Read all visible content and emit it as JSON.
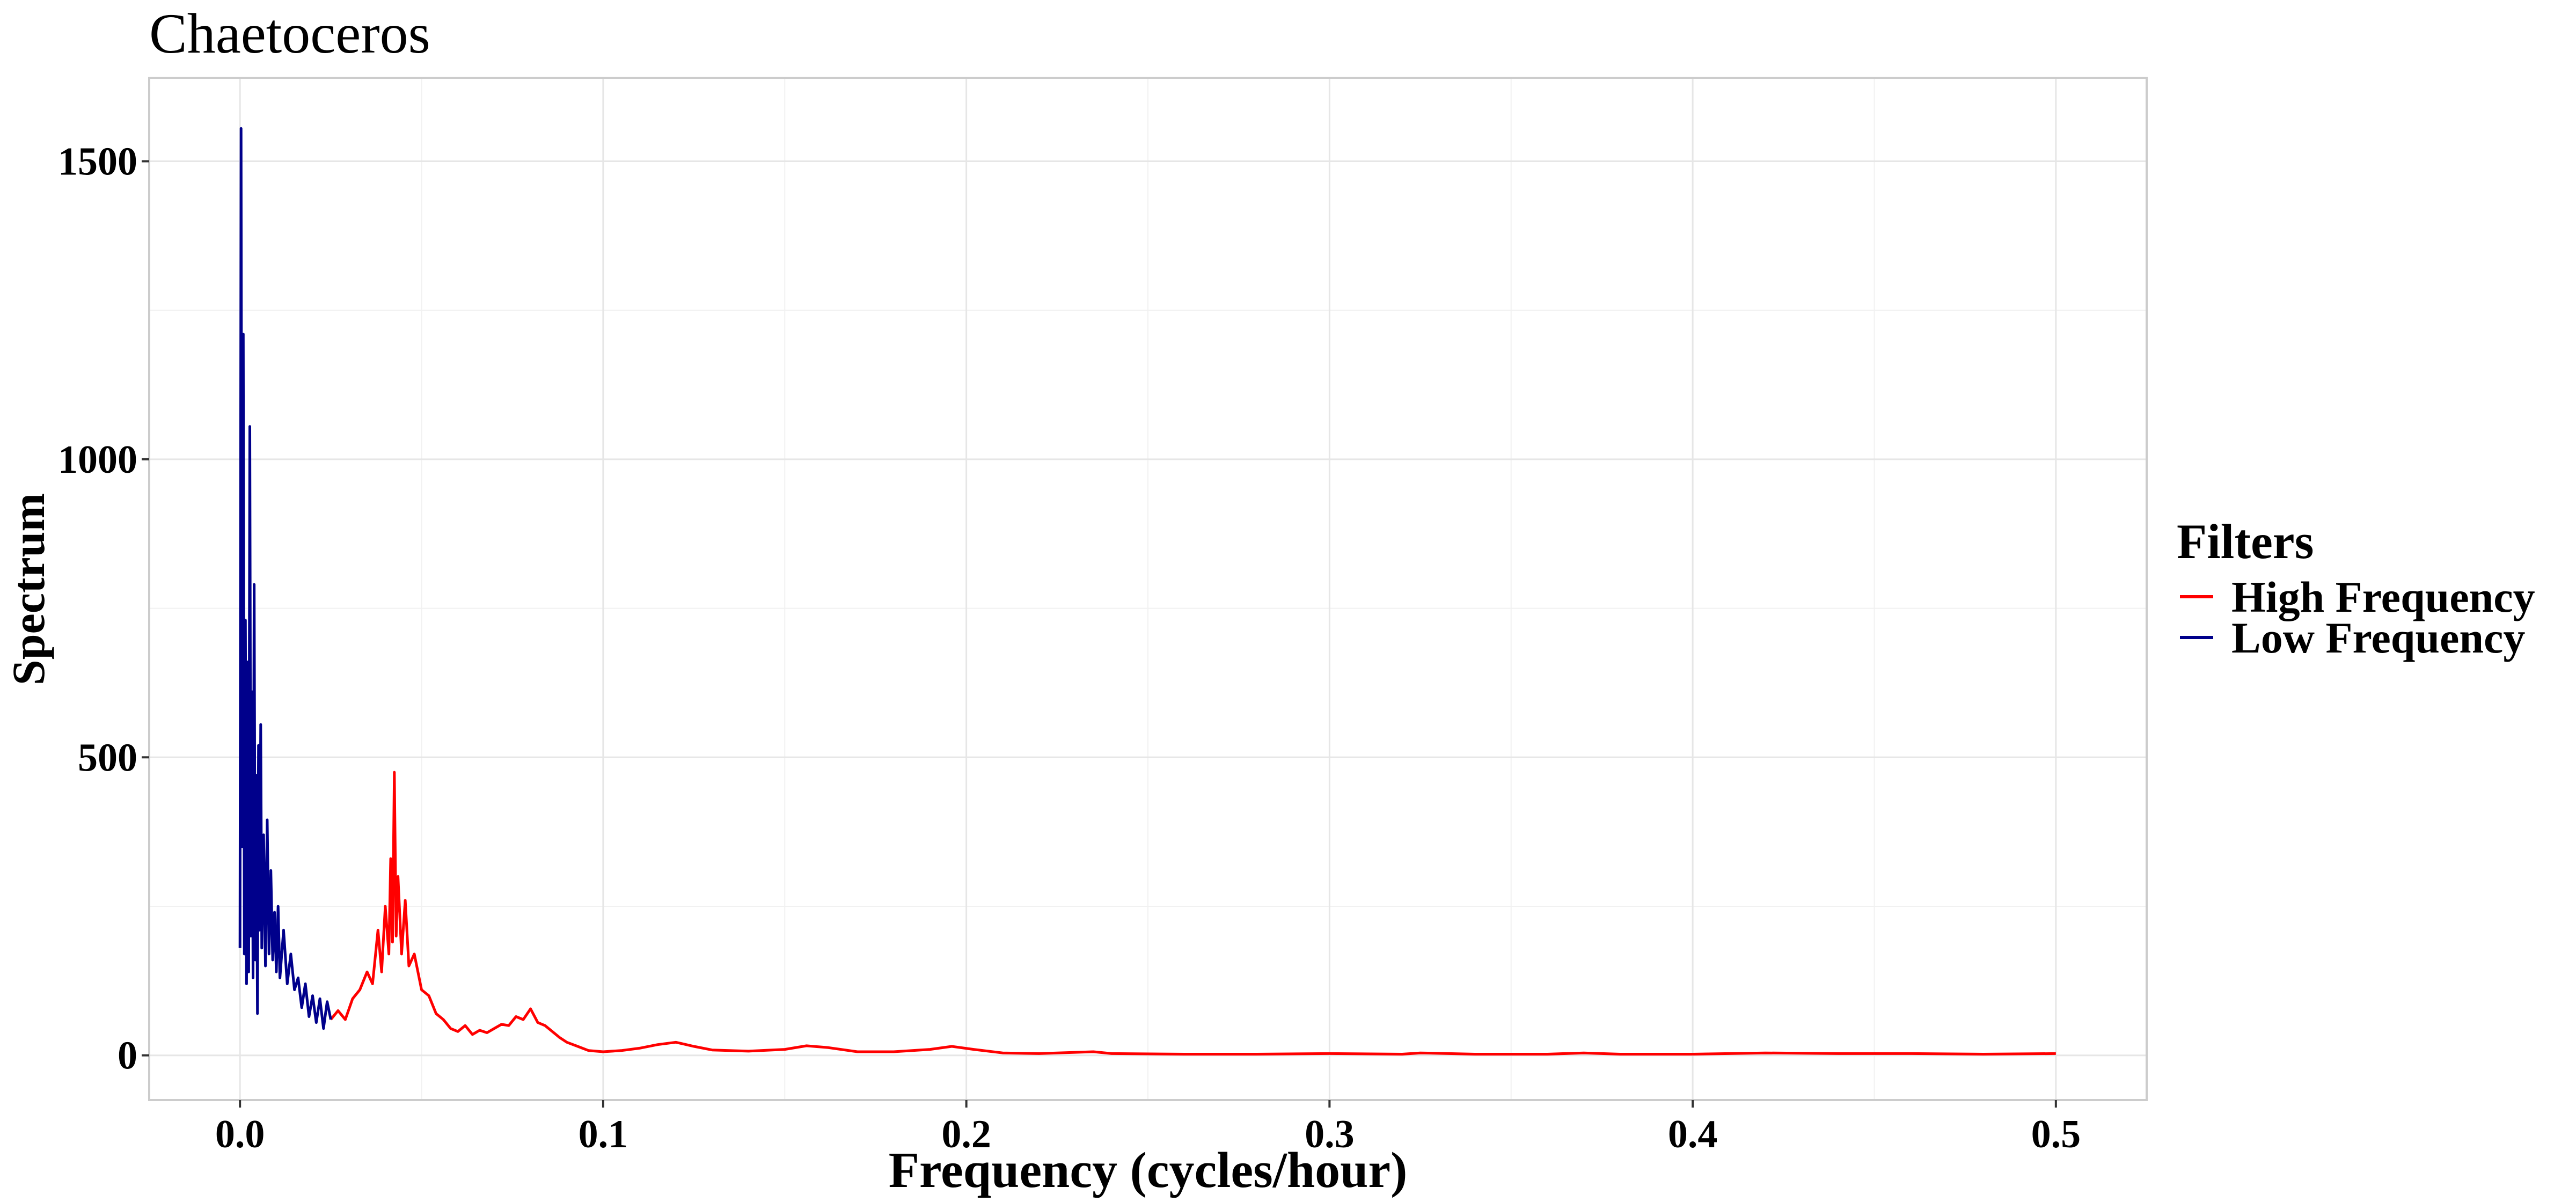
{
  "chart_data": {
    "type": "line",
    "title": "Chaetoceros",
    "xlabel": "Frequency (cycles/hour)",
    "ylabel": "Spectrum",
    "xlim": [
      -0.025,
      0.525
    ],
    "ylim": [
      -75,
      1640
    ],
    "x_ticks": [
      0.0,
      0.1,
      0.2,
      0.3,
      0.4,
      0.5
    ],
    "x_tick_labels": [
      "0.0",
      "0.1",
      "0.2",
      "0.3",
      "0.4",
      "0.5"
    ],
    "y_ticks": [
      0,
      500,
      1000,
      1500
    ],
    "y_tick_labels": [
      "0",
      "500",
      "1000",
      "1500"
    ],
    "grid": true,
    "legend": {
      "title": "Filters",
      "position": "right",
      "entries": [
        {
          "label": "High Frequency",
          "color": "#ff0000"
        },
        {
          "label": "Low Frequency",
          "color": "#00008b"
        }
      ]
    },
    "series": [
      {
        "name": "Low Frequency",
        "color": "#00008b",
        "points": [
          [
            0.0,
            180
          ],
          [
            0.0003,
            1555
          ],
          [
            0.0006,
            350
          ],
          [
            0.0009,
            1210
          ],
          [
            0.0012,
            170
          ],
          [
            0.0015,
            730
          ],
          [
            0.0018,
            120
          ],
          [
            0.0021,
            660
          ],
          [
            0.0024,
            140
          ],
          [
            0.0027,
            1055
          ],
          [
            0.003,
            200
          ],
          [
            0.0033,
            610
          ],
          [
            0.0036,
            130
          ],
          [
            0.0039,
            790
          ],
          [
            0.0042,
            160
          ],
          [
            0.0045,
            470
          ],
          [
            0.0048,
            70
          ],
          [
            0.0051,
            520
          ],
          [
            0.0054,
            210
          ],
          [
            0.0057,
            555
          ],
          [
            0.006,
            180
          ],
          [
            0.0065,
            370
          ],
          [
            0.007,
            150
          ],
          [
            0.0075,
            395
          ],
          [
            0.008,
            170
          ],
          [
            0.0085,
            310
          ],
          [
            0.009,
            160
          ],
          [
            0.0095,
            240
          ],
          [
            0.01,
            140
          ],
          [
            0.0105,
            250
          ],
          [
            0.011,
            130
          ],
          [
            0.012,
            210
          ],
          [
            0.013,
            120
          ],
          [
            0.014,
            170
          ],
          [
            0.015,
            110
          ],
          [
            0.016,
            130
          ],
          [
            0.017,
            80
          ],
          [
            0.018,
            120
          ],
          [
            0.019,
            65
          ],
          [
            0.02,
            100
          ],
          [
            0.021,
            55
          ],
          [
            0.022,
            95
          ],
          [
            0.023,
            45
          ],
          [
            0.024,
            90
          ],
          [
            0.025,
            60
          ]
        ]
      },
      {
        "name": "High Frequency",
        "color": "#ff0000",
        "points": [
          [
            0.025,
            60
          ],
          [
            0.027,
            75
          ],
          [
            0.029,
            60
          ],
          [
            0.031,
            95
          ],
          [
            0.033,
            110
          ],
          [
            0.035,
            140
          ],
          [
            0.0365,
            120
          ],
          [
            0.038,
            210
          ],
          [
            0.039,
            140
          ],
          [
            0.04,
            250
          ],
          [
            0.041,
            170
          ],
          [
            0.0415,
            330
          ],
          [
            0.042,
            190
          ],
          [
            0.0425,
            475
          ],
          [
            0.043,
            200
          ],
          [
            0.0435,
            300
          ],
          [
            0.0445,
            170
          ],
          [
            0.0455,
            260
          ],
          [
            0.0465,
            150
          ],
          [
            0.048,
            170
          ],
          [
            0.05,
            110
          ],
          [
            0.052,
            100
          ],
          [
            0.054,
            70
          ],
          [
            0.056,
            60
          ],
          [
            0.058,
            45
          ],
          [
            0.06,
            40
          ],
          [
            0.062,
            50
          ],
          [
            0.064,
            35
          ],
          [
            0.066,
            42
          ],
          [
            0.068,
            38
          ],
          [
            0.07,
            45
          ],
          [
            0.072,
            52
          ],
          [
            0.074,
            50
          ],
          [
            0.076,
            65
          ],
          [
            0.078,
            60
          ],
          [
            0.08,
            78
          ],
          [
            0.082,
            55
          ],
          [
            0.084,
            50
          ],
          [
            0.086,
            40
          ],
          [
            0.088,
            30
          ],
          [
            0.09,
            22
          ],
          [
            0.093,
            15
          ],
          [
            0.096,
            8
          ],
          [
            0.1,
            6
          ],
          [
            0.105,
            8
          ],
          [
            0.11,
            12
          ],
          [
            0.115,
            18
          ],
          [
            0.12,
            22
          ],
          [
            0.125,
            15
          ],
          [
            0.13,
            9
          ],
          [
            0.14,
            7
          ],
          [
            0.15,
            10
          ],
          [
            0.156,
            16
          ],
          [
            0.162,
            13
          ],
          [
            0.17,
            6
          ],
          [
            0.18,
            6
          ],
          [
            0.19,
            10
          ],
          [
            0.196,
            15
          ],
          [
            0.202,
            10
          ],
          [
            0.21,
            4
          ],
          [
            0.22,
            3
          ],
          [
            0.23,
            5
          ],
          [
            0.235,
            6
          ],
          [
            0.24,
            3
          ],
          [
            0.26,
            2
          ],
          [
            0.28,
            2
          ],
          [
            0.3,
            3
          ],
          [
            0.32,
            2
          ],
          [
            0.325,
            4
          ],
          [
            0.34,
            2
          ],
          [
            0.36,
            2
          ],
          [
            0.37,
            4
          ],
          [
            0.38,
            2
          ],
          [
            0.4,
            2
          ],
          [
            0.41,
            3
          ],
          [
            0.42,
            4
          ],
          [
            0.44,
            3
          ],
          [
            0.46,
            3
          ],
          [
            0.48,
            2
          ],
          [
            0.5,
            3
          ]
        ]
      }
    ]
  }
}
